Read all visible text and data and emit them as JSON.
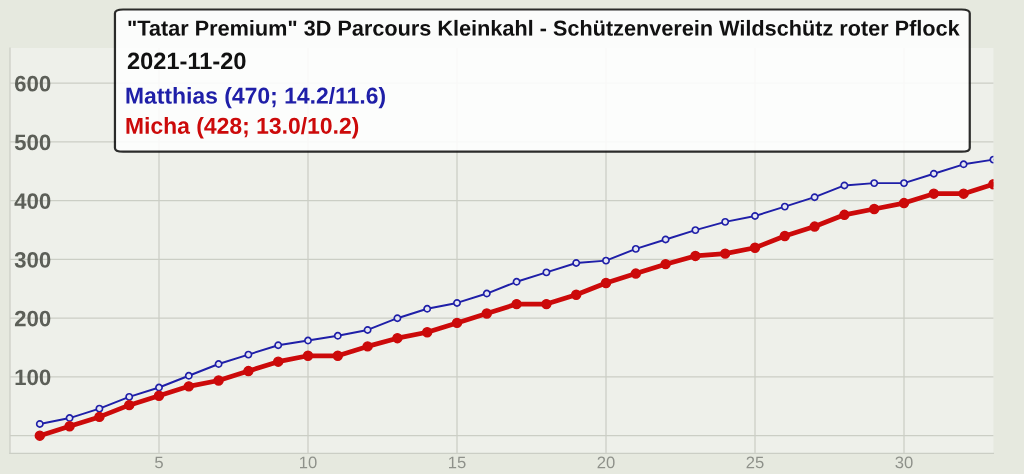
{
  "chart_data": {
    "type": "line",
    "title": "\"Tatar Premium\" 3D Parcours Kleinkahl - Schützenverein Wildschütz roter Pflock",
    "subtitle": "2021-11-20",
    "x": [
      1,
      2,
      3,
      4,
      5,
      6,
      7,
      8,
      9,
      10,
      11,
      12,
      13,
      14,
      15,
      16,
      17,
      18,
      19,
      20,
      21,
      22,
      23,
      24,
      25,
      26,
      27,
      28,
      29,
      30,
      31,
      32,
      33
    ],
    "xlim": [
      0,
      33
    ],
    "xticks": [
      5,
      10,
      15,
      20,
      25,
      30
    ],
    "ylim": [
      -30,
      660
    ],
    "yticks": [
      {
        "value": 0,
        "label": null
      },
      100,
      200,
      300,
      400,
      500,
      600
    ],
    "grid": true,
    "legend": "top",
    "marker": "circle",
    "line_style": "solid",
    "series": [
      {
        "name": "Matthias (470; 14.2/11.6)",
        "color": "#1f1fa8",
        "values": [
          20,
          30,
          46,
          66,
          82,
          102,
          122,
          138,
          154,
          162,
          170,
          180,
          200,
          216,
          226,
          242,
          262,
          278,
          294,
          298,
          318,
          334,
          350,
          364,
          374,
          390,
          406,
          426,
          430,
          430,
          446,
          462,
          470
        ]
      },
      {
        "name": "Micha (428; 13.0/10.2)",
        "color": "#cc0a0a",
        "values": [
          0,
          16,
          32,
          52,
          68,
          84,
          94,
          110,
          126,
          136,
          136,
          152,
          166,
          176,
          192,
          208,
          224,
          224,
          240,
          260,
          276,
          292,
          306,
          310,
          320,
          340,
          356,
          376,
          386,
          396,
          412,
          412,
          428
        ]
      }
    ]
  }
}
